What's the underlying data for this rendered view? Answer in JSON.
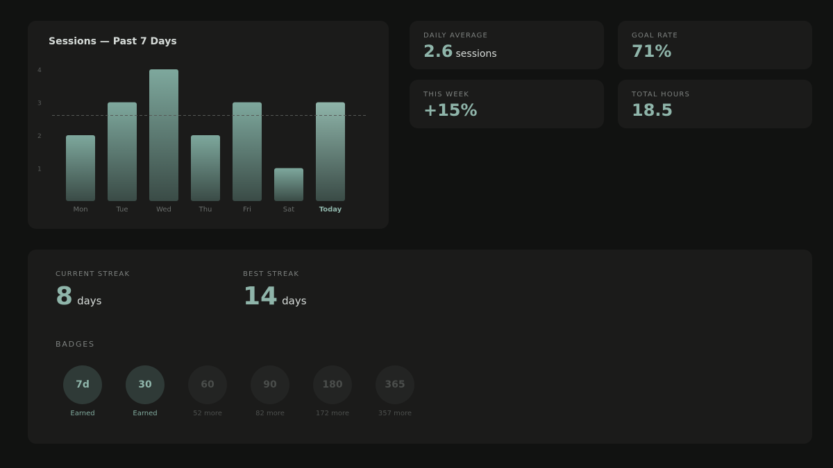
{
  "chart": {
    "title": "Sessions — Past 7 Days"
  },
  "chart_data": {
    "type": "bar",
    "title": "Sessions — Past 7 Days",
    "categories": [
      "Mon",
      "Tue",
      "Wed",
      "Thu",
      "Fri",
      "Sat",
      "Today"
    ],
    "values": [
      2,
      3,
      4,
      2,
      3,
      1,
      3
    ],
    "highlighted_category": "Today",
    "yticks": [
      1,
      2,
      3,
      4
    ],
    "ylim": [
      0,
      4
    ],
    "reference_line": 2.6,
    "grid": false,
    "colors": {
      "bar_top": "#7ea89d",
      "bar_bottom": "#3a4b46",
      "today_top": "#8fb5aa",
      "reference": "#555856"
    }
  },
  "stats": {
    "daily_average": {
      "label": "DAILY AVERAGE",
      "value": "2.6",
      "unit": "sessions"
    },
    "goal_rate": {
      "label": "GOAL RATE",
      "value": "71%"
    },
    "this_week": {
      "label": "THIS WEEK",
      "value": "+15%"
    },
    "total_hours": {
      "label": "TOTAL HOURS",
      "value": "18.5"
    }
  },
  "streaks": {
    "current": {
      "label": "CURRENT STREAK",
      "value": "8",
      "unit": "days"
    },
    "best": {
      "label": "BEST STREAK",
      "value": "14",
      "unit": "days"
    }
  },
  "badges": {
    "label": "BADGES",
    "items": [
      {
        "value": "7d",
        "caption": "Earned",
        "earned": true
      },
      {
        "value": "30",
        "caption": "Earned",
        "earned": true
      },
      {
        "value": "60",
        "caption": "52 more",
        "earned": false
      },
      {
        "value": "90",
        "caption": "82 more",
        "earned": false
      },
      {
        "value": "180",
        "caption": "172 more",
        "earned": false
      },
      {
        "value": "365",
        "caption": "357 more",
        "earned": false
      }
    ]
  },
  "colors": {
    "background": "#111211",
    "card": "#1b1b1a",
    "accent": "#8fb5aa"
  }
}
